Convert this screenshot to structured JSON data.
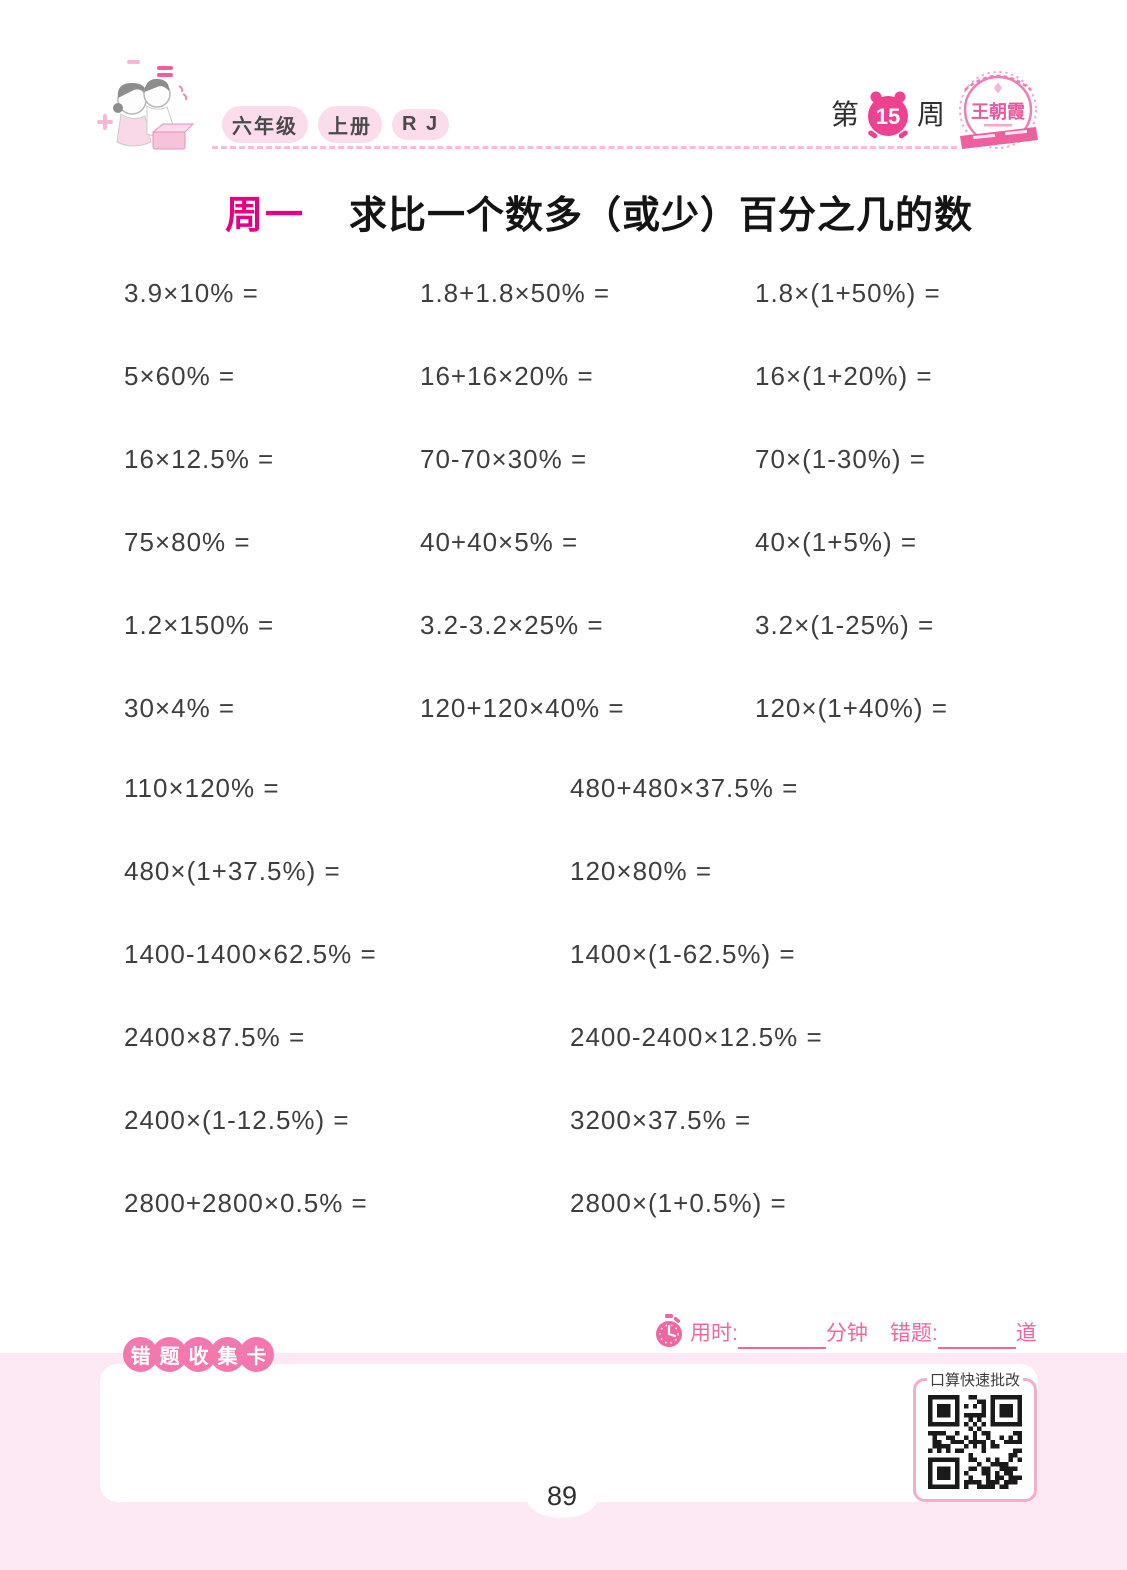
{
  "header": {
    "grade_badge": {
      "grade": "六年级",
      "volume": "上册",
      "edition": "R J"
    },
    "week": {
      "prefix": "第",
      "number": "15",
      "suffix": "周"
    },
    "logo": {
      "name": "王朝霞"
    }
  },
  "title": {
    "day": "周一",
    "text": "求比一个数多（或少）百分之几的数"
  },
  "problems": {
    "section1": [
      [
        "3.9×10% =",
        "1.8+1.8×50% =",
        "1.8×(1+50%) ="
      ],
      [
        "5×60% =",
        "16+16×20% =",
        "16×(1+20%) ="
      ],
      [
        "16×12.5% =",
        "70-70×30% =",
        "70×(1-30%) ="
      ],
      [
        "75×80% =",
        "40+40×5% =",
        "40×(1+5%) ="
      ],
      [
        "1.2×150% =",
        "3.2-3.2×25% =",
        "3.2×(1-25%) ="
      ],
      [
        "30×4% =",
        "120+120×40% =",
        "120×(1+40%) ="
      ]
    ],
    "section2": [
      [
        "110×120% =",
        "480+480×37.5% ="
      ],
      [
        "480×(1+37.5%) =",
        "120×80% ="
      ],
      [
        "1400-1400×62.5% =",
        "1400×(1-62.5%) ="
      ],
      [
        "2400×87.5% =",
        "2400-2400×12.5% ="
      ],
      [
        "2400×(1-12.5%) =",
        "3200×37.5% ="
      ],
      [
        "2800+2800×0.5% =",
        "2800×(1+0.5%) ="
      ]
    ]
  },
  "timer": {
    "time_label": "用时:",
    "time_unit": "分钟",
    "wrong_label": "错题:",
    "wrong_unit": "道"
  },
  "footer": {
    "card_label_chars": [
      "错",
      "题",
      "收",
      "集",
      "卡"
    ],
    "qr_label": "口算快速批改",
    "page_number": "89"
  },
  "colors": {
    "magenta": "#e4007f",
    "clock_pink": "#ee4190",
    "badge_pink": "#f278ad",
    "bubble_pink": "#fbdcea",
    "timer_pink": "#f0679f",
    "footer_bg": "#fce9f3",
    "qr_border": "#f6adca",
    "text_dark": "#3e3e3e"
  }
}
